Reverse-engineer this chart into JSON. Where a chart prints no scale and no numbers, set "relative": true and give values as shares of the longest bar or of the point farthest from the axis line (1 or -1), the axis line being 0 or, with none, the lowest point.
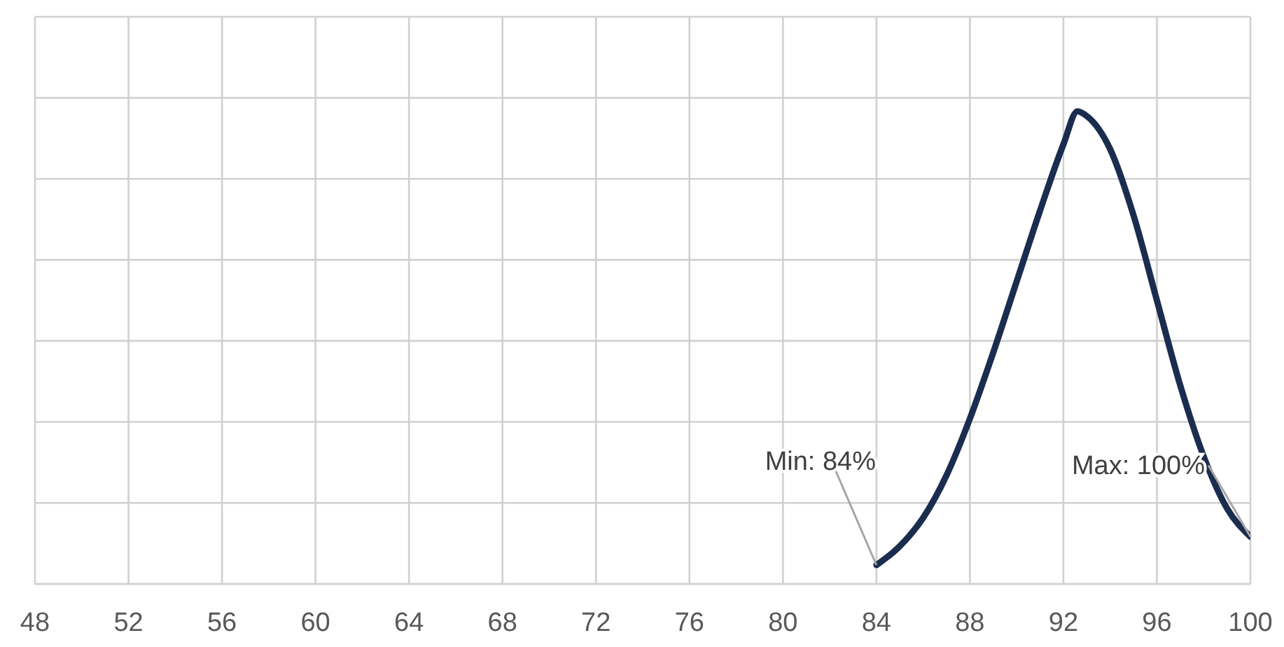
{
  "chart_data": {
    "type": "line",
    "relative": true,
    "x": [
      84,
      85,
      86,
      87,
      88,
      89,
      90,
      91,
      92,
      92.6,
      93,
      94,
      95,
      96,
      97,
      98,
      99,
      100
    ],
    "series": [
      {
        "color": "#1b2d4f",
        "values": [
          0.04,
          0.08,
          0.14,
          0.23,
          0.35,
          0.49,
          0.64,
          0.79,
          0.93,
          1,
          0.99,
          0.92,
          0.78,
          0.6,
          0.42,
          0.27,
          0.16,
          0.1
        ]
      }
    ],
    "xlim": [
      48,
      100
    ],
    "xticks": [
      48,
      52,
      56,
      60,
      64,
      68,
      72,
      76,
      80,
      84,
      88,
      92,
      96,
      100
    ],
    "grid": true,
    "marker": "none",
    "line_style": "solid",
    "legend": false,
    "annotations": [
      {
        "text": "Min: 84%",
        "x": 84,
        "y": 0.04
      },
      {
        "text": "Max: 100%",
        "x": 100,
        "y": 0.1
      }
    ]
  }
}
